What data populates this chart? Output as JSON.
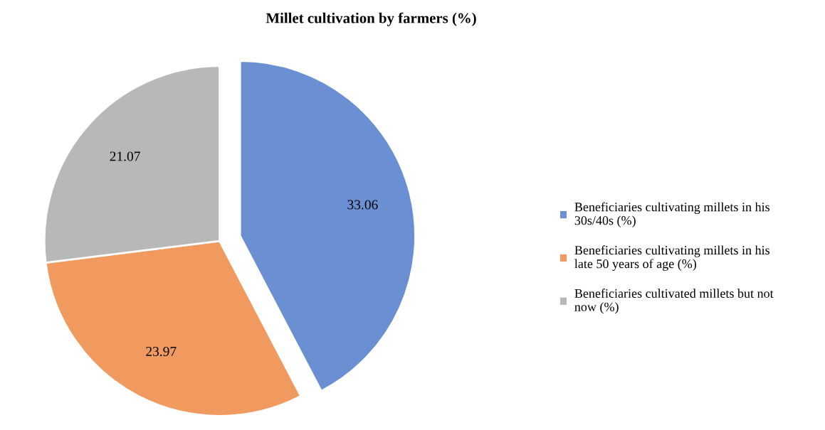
{
  "chart_data": {
    "type": "pie",
    "title": "Millet cultivation by farmers (%)",
    "categories": [
      "Beneficiaries cultivating millets in his 30s/40s (%)",
      "Beneficiaries cultivating millets in his late 50 years of age (%)",
      "Beneficiaries cultivated millets but not now (%)"
    ],
    "values": [
      33.06,
      23.97,
      21.07
    ],
    "colors": [
      "#6a8fd2",
      "#f09a60",
      "#b8b8b8"
    ],
    "data_labels": true,
    "legend": "right"
  }
}
